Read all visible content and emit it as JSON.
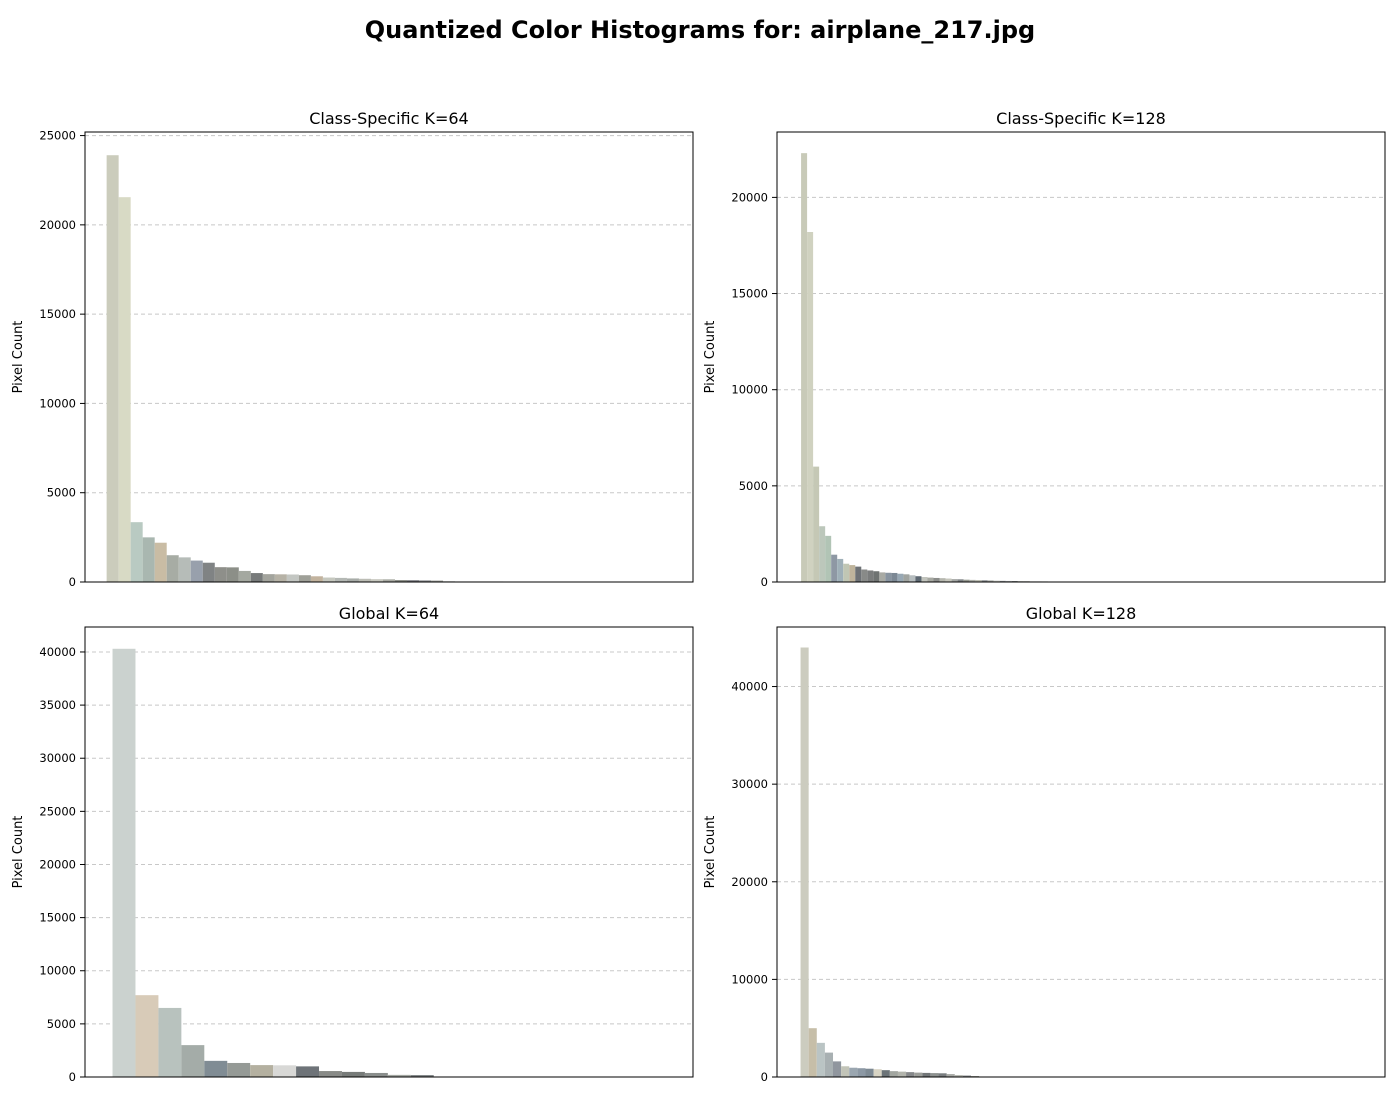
{
  "figure": {
    "title": "Quantized Color Histograms for: airplane_217.jpg"
  },
  "chart_data": [
    {
      "type": "bar",
      "title": "Class-Specific K=64",
      "xlabel": "",
      "ylabel": "Pixel Count",
      "ylim": [
        0,
        25200
      ],
      "yticks": [
        0,
        5000,
        10000,
        15000,
        20000,
        25000
      ],
      "xlim": [
        -2.3,
        48.3
      ],
      "grid": "y",
      "values": [
        23900,
        21550,
        3350,
        2500,
        2200,
        1500,
        1380,
        1200,
        1080,
        830,
        820,
        620,
        500,
        440,
        430,
        420,
        380,
        320,
        250,
        230,
        200,
        180,
        160,
        150,
        110,
        100,
        90,
        80,
        40,
        30,
        30,
        30,
        30,
        20,
        20,
        20,
        20
      ],
      "colors": [
        "#cbccbc",
        "#d8dac5",
        "#b9cac2",
        "#a9b7b0",
        "#c9bca4",
        "#a7aca4",
        "#b6bcb8",
        "#98a0ac",
        "#808384",
        "#8e8f8a",
        "#8c8f88",
        "#a4a8a0",
        "#777a7a",
        "#a3a49d",
        "#b6b2a6",
        "#c3c6c2",
        "#9fa098",
        "#c2b39e",
        "#c6c8bf",
        "#b4b8b4",
        "#a8aca8",
        "#bcbdb5",
        "#c8c9c0",
        "#a9aaa3",
        "#8d8f89",
        "#73757a",
        "#85878a",
        "#9a9c96",
        "#b1b3ad",
        "#aaaca5",
        "#9b9c95",
        "#8a8c86",
        "#a6a8a1",
        "#7a7c77",
        "#bebfb8",
        "#91938c",
        "#b8b9b2"
      ]
    },
    {
      "type": "bar",
      "title": "Class-Specific K=128",
      "xlabel": "",
      "ylabel": "Pixel Count",
      "ylim": [
        0,
        23400
      ],
      "yticks": [
        0,
        5000,
        10000,
        15000,
        20000
      ],
      "xlim": [
        -4.5,
        96.5
      ],
      "grid": "y",
      "values": [
        22300,
        18200,
        6000,
        2900,
        2400,
        1420,
        1200,
        950,
        880,
        800,
        650,
        600,
        560,
        500,
        480,
        470,
        430,
        400,
        350,
        300,
        260,
        230,
        210,
        200,
        180,
        150,
        140,
        120,
        110,
        100,
        90,
        80,
        70,
        60,
        55,
        50,
        45,
        40,
        35,
        30,
        30,
        25,
        25,
        20,
        20,
        20,
        20,
        20,
        20,
        20,
        20,
        20,
        20,
        20,
        20,
        20
      ],
      "colors": [
        "#c8cab8",
        "#d0d2c0",
        "#c5c8b5",
        "#bcc7bb",
        "#b1c4b5",
        "#8e98a4",
        "#9fb0b8",
        "#c0c6b4",
        "#bfb49c",
        "#6e7276",
        "#888a88",
        "#7a7c7c",
        "#6f7372",
        "#a8aaa4",
        "#8894a0",
        "#7c8894",
        "#98a8b4",
        "#a0a4a0",
        "#b6bdbf",
        "#5d6872",
        "#c2c4bd",
        "#a7a9a2",
        "#8b8d8a",
        "#b6b7af",
        "#c6c6bc",
        "#a3a6a3",
        "#7f8386",
        "#969990",
        "#acaea8",
        "#b9baae",
        "#84878a",
        "#9ea19b",
        "#c1c3bb",
        "#8d9095",
        "#a8abae",
        "#7b7e80",
        "#b0b2ab",
        "#9a9c94",
        "#c9cbc2",
        "#888b85",
        "#a5a79f",
        "#6e7175",
        "#b8bab3",
        "#979991",
        "#85888c",
        "#aeb0a9",
        "#c3c5bc",
        "#91948e",
        "#7c7f82",
        "#a2a49d",
        "#b5b7b0",
        "#8f9194",
        "#9c9e97",
        "#bcbeb6",
        "#80837f",
        "#a9aba4"
      ]
    },
    {
      "type": "bar",
      "title": "Global K=64",
      "xlabel": "",
      "ylabel": "Pixel Count",
      "ylim": [
        0,
        42350
      ],
      "yticks": [
        0,
        5000,
        10000,
        15000,
        20000,
        25000,
        30000,
        35000,
        40000
      ],
      "xlim": [
        -1.7,
        24.8
      ],
      "grid": "y",
      "values": [
        40300,
        7700,
        6500,
        3000,
        1520,
        1320,
        1120,
        1100,
        1000,
        560,
        480,
        380,
        200,
        180
      ],
      "colors": [
        "#cbd2cf",
        "#d8cbb8",
        "#b8c2be",
        "#a4aca8",
        "#808c94",
        "#959a96",
        "#b4b0a0",
        "#d8d8d6",
        "#6e7378",
        "#888a87",
        "#777b79",
        "#8a8e8c",
        "#a2a6a0",
        "#7b8082"
      ]
    },
    {
      "type": "bar",
      "title": "Global K=128",
      "xlabel": "",
      "ylabel": "Pixel Count",
      "ylim": [
        0,
        46100
      ],
      "yticks": [
        0,
        10000,
        20000,
        30000,
        40000
      ],
      "xlim": [
        -3.4,
        71.5
      ],
      "grid": "y",
      "values": [
        44000,
        5000,
        3500,
        2500,
        1600,
        1100,
        950,
        900,
        850,
        800,
        700,
        600,
        550,
        500,
        450,
        420,
        400,
        380,
        300,
        200,
        150,
        100,
        50
      ],
      "colors": [
        "#ccccbf",
        "#c6bea8",
        "#bac4c4",
        "#a8b0b2",
        "#90969e",
        "#c2c4b8",
        "#9aa6b0",
        "#8c98a4",
        "#7e8a94",
        "#d8d4c4",
        "#6c7478",
        "#a2a6a0",
        "#b2b4ac",
        "#86888a",
        "#9c9e9a",
        "#727678",
        "#8e9290",
        "#7a7e80",
        "#a8aaa6",
        "#b6b8b0",
        "#84888a",
        "#9e9f98",
        "#c4c6bd"
      ]
    }
  ]
}
